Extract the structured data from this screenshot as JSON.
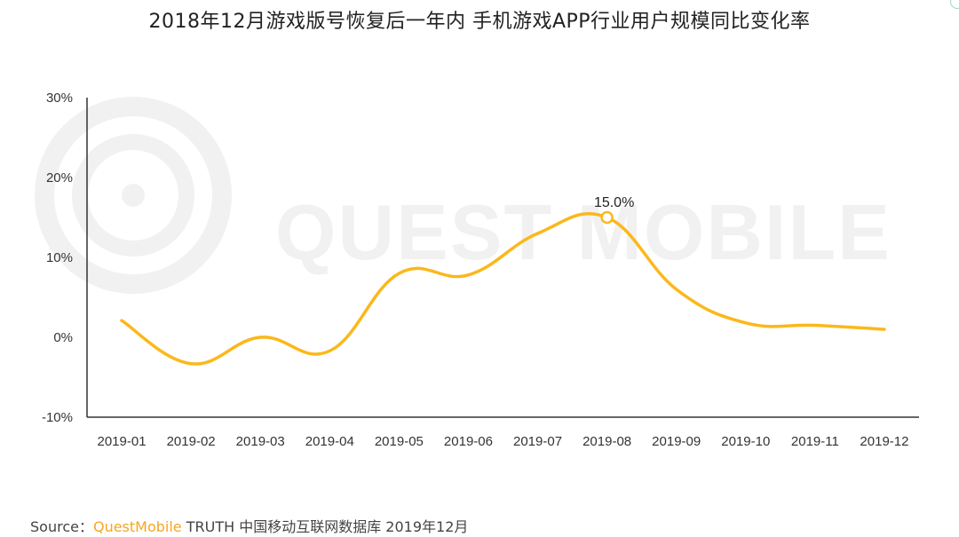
{
  "title": "2018年12月游戏版号恢复后一年内 手机游戏APP行业用户规模同比变化率",
  "watermark": "QUEST MOBILE",
  "source": {
    "prefix": "Source：",
    "brand": "QuestMobile",
    "suffix": " TRUTH 中国移动互联网数据库 2019年12月"
  },
  "colors": {
    "line": "#fbb81b",
    "axis": "#333333",
    "watermark": "#f1f1f1"
  },
  "chart_data": {
    "type": "line",
    "title": "2018年12月游戏版号恢复后一年内 手机游戏APP行业用户规模同比变化率",
    "categories": [
      "2019-01",
      "2019-02",
      "2019-03",
      "2019-04",
      "2019-05",
      "2019-06",
      "2019-07",
      "2019-08",
      "2019-09",
      "2019-10",
      "2019-11",
      "2019-12"
    ],
    "series": [
      {
        "values": [
          2.1,
          -3.3,
          0.0,
          -1.7,
          8.0,
          7.8,
          13.0,
          15.0,
          6.0,
          1.8,
          1.5,
          1.0
        ]
      }
    ],
    "yticks": [
      "30%",
      "20%",
      "10%",
      "0%",
      "-10%"
    ],
    "ylim": [
      -10,
      30
    ],
    "annotations": [
      {
        "category": "2019-08",
        "label": "15.0%"
      }
    ],
    "grid": false,
    "smooth": true
  }
}
